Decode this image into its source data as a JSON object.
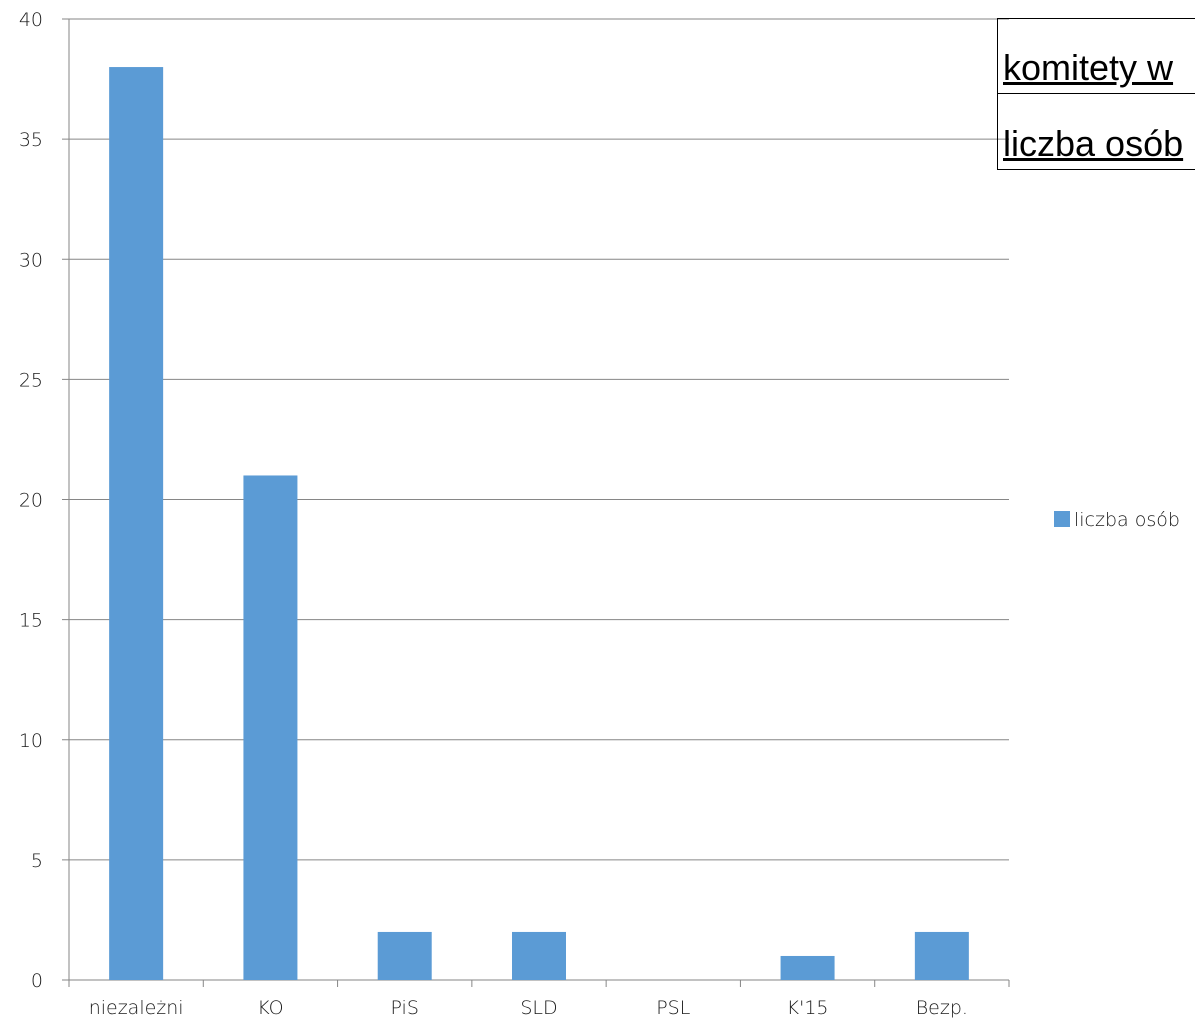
{
  "header_table": {
    "row1": "komitety w",
    "row2": "liczba osób"
  },
  "chart_data": {
    "type": "bar",
    "title": "",
    "xlabel": "",
    "ylabel": "",
    "categories": [
      "niezależni",
      "KO",
      "PiS",
      "SLD",
      "PSL",
      "K'15",
      "Bezp."
    ],
    "series": [
      {
        "name": "liczba osób",
        "values": [
          38,
          21,
          2,
          2,
          0,
          1,
          2
        ],
        "color": "#5b9bd5"
      }
    ],
    "ylim": [
      0,
      40
    ],
    "yticks": [
      0,
      5,
      10,
      15,
      20,
      25,
      30,
      35,
      40
    ],
    "grid": true,
    "legend_position": "right"
  }
}
